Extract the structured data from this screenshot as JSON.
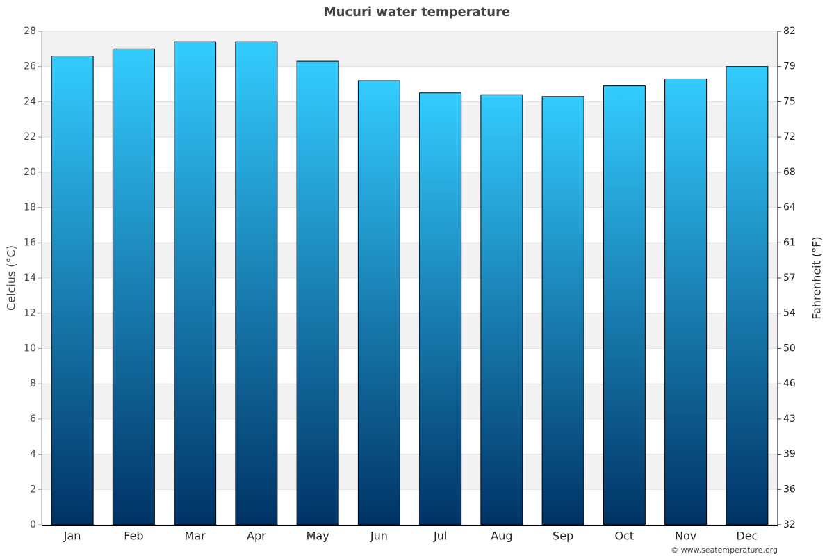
{
  "chart_data": {
    "type": "bar",
    "title": "Mucuri water temperature",
    "y_label": "Celcius (°C)",
    "y2_label": "Fahrenheit (°F)",
    "credit": "© www.seatemperature.org",
    "categories": [
      "Jan",
      "Feb",
      "Mar",
      "Apr",
      "May",
      "Jun",
      "Jul",
      "Aug",
      "Sep",
      "Oct",
      "Nov",
      "Dec"
    ],
    "values": [
      26.6,
      27.0,
      27.4,
      27.4,
      26.3,
      25.2,
      24.5,
      24.4,
      24.3,
      24.9,
      25.3,
      26.0
    ],
    "color": [
      "#33ccff",
      "#003366"
    ],
    "ylim": [
      0,
      28
    ],
    "yticks": [
      0,
      2,
      4,
      6,
      8,
      10,
      12,
      14,
      16,
      18,
      20,
      22,
      24,
      26,
      28
    ],
    "y2lim": [
      32,
      82.4
    ],
    "y2ticks": [
      32,
      {
        "value": 35.6,
        "label": "36"
      },
      {
        "value": 39.2,
        "label": "39"
      },
      {
        "value": 42.8,
        "label": "43"
      },
      {
        "value": 46.4,
        "label": "46"
      },
      50,
      {
        "value": 53.6,
        "label": "54"
      },
      {
        "value": 57.2,
        "label": "57"
      },
      {
        "value": 60.8,
        "label": "61"
      },
      {
        "value": 64.4,
        "label": "64"
      },
      68,
      {
        "value": 71.6,
        "label": "72"
      },
      {
        "value": 75.2,
        "label": "75"
      },
      {
        "value": 78.8,
        "label": "79"
      },
      {
        "value": 82.4,
        "label": "82"
      }
    ],
    "grid": true
  }
}
